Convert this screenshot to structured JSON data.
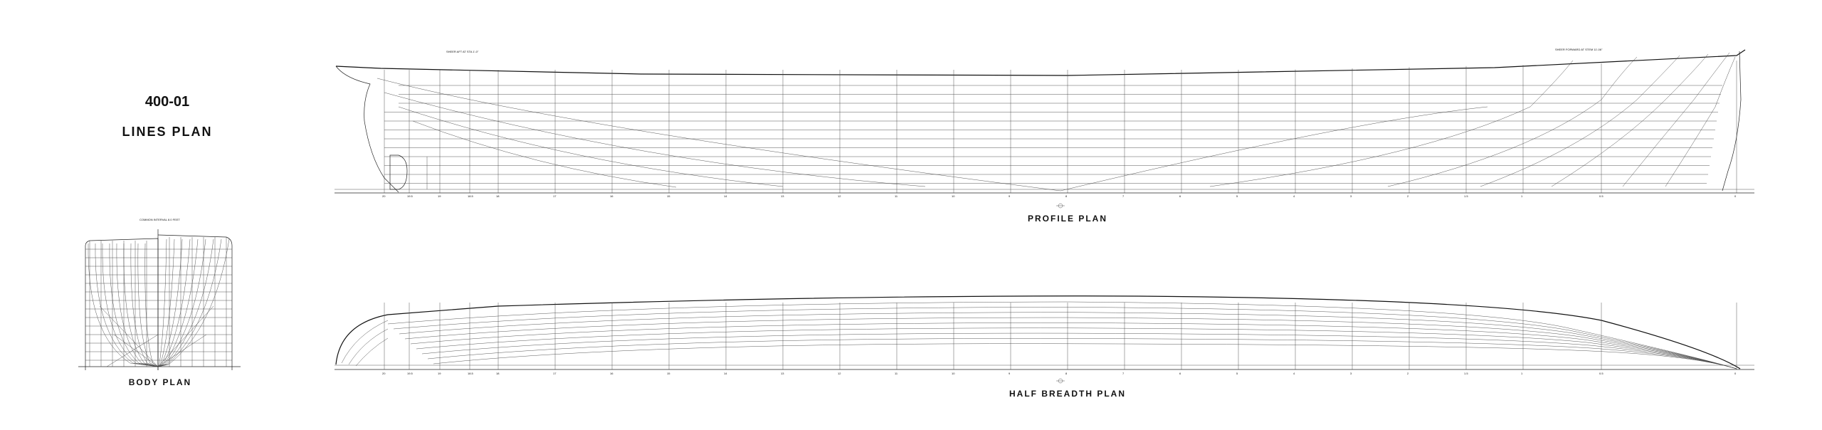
{
  "drawing": {
    "number": "400-01",
    "name": "LINES  PLAN"
  },
  "body_plan": {
    "title": "BODY  PLAN",
    "note": "COMMON INTERVAL 8.0 FEET"
  },
  "profile_plan": {
    "title": "PROFILE  PLAN",
    "sheer_aft": "SHEER AFT AT STA 1'-0\"",
    "sheer_fwd": "SHEER FORWARD AT STEM 11'-06\"",
    "station_labels": [
      "20",
      "19.5",
      "19",
      "18.5",
      "18",
      "17",
      "16",
      "15",
      "14",
      "13",
      "12",
      "11",
      "10",
      "9",
      "8",
      "7",
      "6",
      "5",
      "4",
      "3",
      "2",
      "1.5",
      "1",
      "0.5",
      "0"
    ]
  },
  "half_breadth_plan": {
    "title": "HALF  BREADTH  PLAN"
  }
}
